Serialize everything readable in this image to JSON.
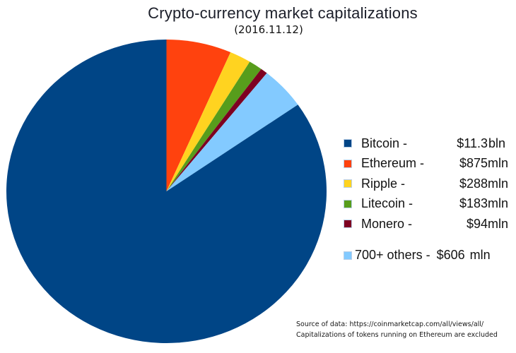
{
  "source": {
    "line1": "Source of data: https://coinmarketcap.com/all/views/all/",
    "line2": "Capitalizations of tokens running on Ethereum are excluded"
  },
  "chart_data": {
    "type": "pie",
    "title": "Crypto-currency market capitalizations",
    "subtitle": "(2016.11.12)",
    "legend_position": "right",
    "start_angle_deg": 0,
    "direction": "clockwise",
    "total_mln": 13346,
    "segments": [
      {
        "label": "Bitcoin",
        "display": "Bitcoin -",
        "amount": "$11.3",
        "unit": "bln",
        "value_mln": 11300,
        "color": "#004586"
      },
      {
        "label": "Ethereum",
        "display": "Ethereum -",
        "amount": "$875",
        "unit": "mln",
        "value_mln": 875,
        "color": "#ff420e"
      },
      {
        "label": "Ripple",
        "display": "Ripple -",
        "amount": "$288",
        "unit": "mln",
        "value_mln": 288,
        "color": "#ffd320"
      },
      {
        "label": "Litecoin",
        "display": "Litecoin -",
        "amount": "$183",
        "unit": "mln",
        "value_mln": 183,
        "color": "#579d1c"
      },
      {
        "label": "Monero",
        "display": "Monero -",
        "amount": "$94",
        "unit": "mln",
        "value_mln": 94,
        "color": "#7e0021"
      },
      {
        "label": "700+ others",
        "display": "700+ others -",
        "amount": "$606",
        "unit": "mln",
        "value_mln": 606,
        "color": "#83caff"
      }
    ],
    "pie_draw_order": [
      1,
      2,
      3,
      4,
      5,
      0
    ]
  }
}
